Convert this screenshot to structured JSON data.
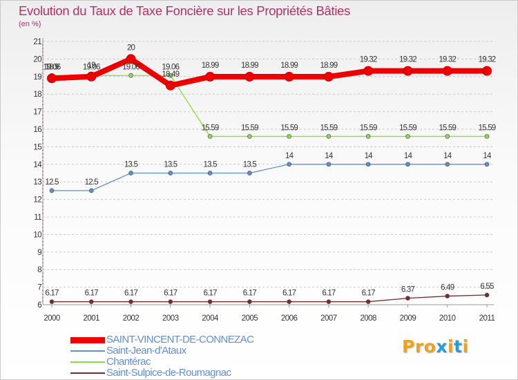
{
  "title": "Evolution du Taux de Taxe Foncière sur les Propriétés Bâties",
  "subtitle": "(en %)",
  "logo": {
    "text": "Proxiti",
    "letter_colors": [
      "#f0a020",
      "#f0a020",
      "#f0a020",
      "#2a9ad8",
      "#f0a020",
      "#2a9ad8",
      "#f0a020"
    ]
  },
  "chart_data": {
    "type": "line",
    "title": "Evolution du Taux de Taxe Foncière sur les Propriétés Bâties",
    "ylabel": "(en %)",
    "xlabel": "",
    "categories": [
      "2000",
      "2001",
      "2002",
      "2003",
      "2004",
      "2005",
      "2006",
      "2007",
      "2008",
      "2009",
      "2010",
      "2011"
    ],
    "ylim": [
      6,
      21
    ],
    "yticks": [
      "6",
      "7",
      "8",
      "9",
      "10",
      "11",
      "12",
      "13",
      "14",
      "15",
      "16",
      "17",
      "18",
      "19",
      "20",
      "21"
    ],
    "grid": "horizontal dashed",
    "series": [
      {
        "name": "Chantérac",
        "color": "#88dd44",
        "marker_color": "#88dd44",
        "values": [
          19.06,
          19.06,
          19.06,
          19.06,
          15.59,
          15.59,
          15.59,
          15.59,
          15.59,
          15.59,
          15.59,
          15.59
        ],
        "labels": [
          "19.06",
          "19.06",
          "19.06",
          "19.06",
          "15.59",
          "15.59",
          "15.59",
          "15.59",
          "15.59",
          "15.59",
          "15.59",
          "15.59"
        ]
      },
      {
        "name": "Saint-Jean-d'Ataux",
        "color": "#5f8fcc",
        "marker_color": "#5f8fcc",
        "values": [
          12.5,
          12.5,
          13.5,
          13.5,
          13.5,
          13.5,
          14,
          14,
          14,
          14,
          14,
          14
        ],
        "labels": [
          "12.5",
          "12.5",
          "13.5",
          "13.5",
          "13.5",
          "13.5",
          "14",
          "14",
          "14",
          "14",
          "14",
          "14"
        ]
      },
      {
        "name": "Saint-Sulpice-de-Roumagnac",
        "color": "#7b2a2a",
        "marker_color": "#7b2a2a",
        "values": [
          6.17,
          6.17,
          6.17,
          6.17,
          6.17,
          6.17,
          6.17,
          6.17,
          6.17,
          6.37,
          6.49,
          6.55
        ],
        "labels": [
          "6.17",
          "6.17",
          "6.17",
          "6.17",
          "6.17",
          "6.17",
          "6.17",
          "6.17",
          "6.17",
          "6.37",
          "6.49",
          "6.55"
        ]
      },
      {
        "name": "SAINT-VINCENT-DE-CONNEZAC",
        "color": "#ee0000",
        "marker_color": "#ee0000",
        "values": [
          18.9,
          19,
          20,
          18.49,
          18.99,
          18.99,
          18.99,
          18.99,
          19.32,
          19.32,
          19.32,
          19.32
        ],
        "labels": [
          "18.9",
          "19",
          "20",
          "18.49",
          "18.99",
          "18.99",
          "18.99",
          "18.99",
          "19.32",
          "19.32",
          "19.32",
          "19.32"
        ]
      }
    ],
    "legend_order": [
      "SAINT-VINCENT-DE-CONNEZAC",
      "Saint-Jean-d'Ataux",
      "Chantérac",
      "Saint-Sulpice-de-Roumagnac"
    ],
    "legend": "bottom-left"
  }
}
